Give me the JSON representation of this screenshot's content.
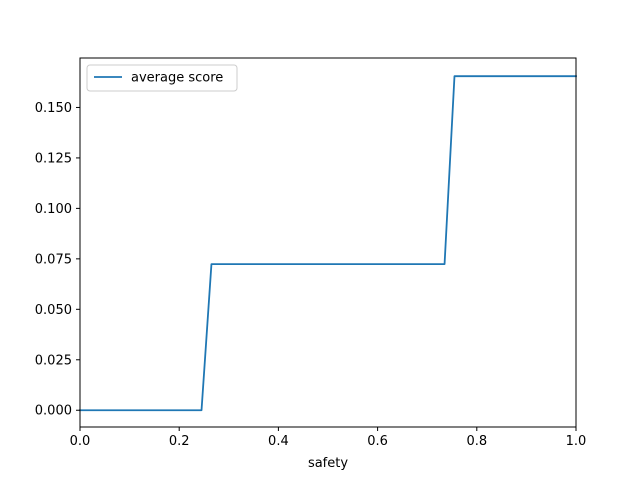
{
  "chart_data": {
    "type": "line",
    "title": "",
    "xlabel": "safety",
    "ylabel": "",
    "xlim": [
      0.0,
      1.0
    ],
    "ylim": [
      -0.0083,
      0.1745
    ],
    "x_ticks": [
      {
        "value": 0.0,
        "label": "0.0"
      },
      {
        "value": 0.2,
        "label": "0.2"
      },
      {
        "value": 0.4,
        "label": "0.4"
      },
      {
        "value": 0.6,
        "label": "0.6"
      },
      {
        "value": 0.8,
        "label": "0.8"
      },
      {
        "value": 1.0,
        "label": "1.0"
      }
    ],
    "y_ticks": [
      {
        "value": 0.0,
        "label": "0.000"
      },
      {
        "value": 0.025,
        "label": "0.025"
      },
      {
        "value": 0.05,
        "label": "0.050"
      },
      {
        "value": 0.075,
        "label": "0.075"
      },
      {
        "value": 0.1,
        "label": "0.100"
      },
      {
        "value": 0.125,
        "label": "0.125"
      },
      {
        "value": 0.15,
        "label": "0.150"
      }
    ],
    "grid": false,
    "legend": {
      "placement": "top-left"
    },
    "series": [
      {
        "name": "average score",
        "color": "#1f77b4",
        "x": [
          0.0,
          0.245,
          0.265,
          0.735,
          0.755,
          1.0
        ],
        "y": [
          0.0,
          0.0,
          0.0724,
          0.0724,
          0.1655,
          0.1655
        ]
      }
    ]
  }
}
